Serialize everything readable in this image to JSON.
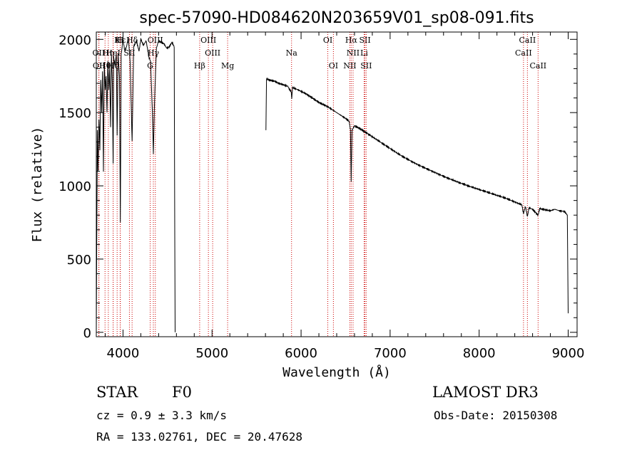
{
  "chart_data": {
    "type": "line",
    "title": "spec-57090-HD084620N203659V01_sp08-091.fits",
    "xlabel": "Wavelength (Å)",
    "ylabel": "Flux (relative)",
    "xlim": [
      3700,
      9100
    ],
    "ylim": [
      -30,
      2050
    ],
    "xticks": [
      4000,
      5000,
      6000,
      7000,
      8000,
      9000
    ],
    "yticks": [
      0,
      500,
      1000,
      1500,
      2000
    ],
    "grid": false,
    "series": [
      {
        "name": "flux",
        "segments": [
          [
            [
              3700,
              5
            ],
            [
              3705,
              620
            ],
            [
              3712,
              1380
            ],
            [
              3720,
              1100
            ],
            [
              3730,
              1450
            ],
            [
              3740,
              1250
            ],
            [
              3750,
              1720
            ],
            [
              3760,
              1500
            ],
            [
              3770,
              1780
            ],
            [
              3780,
              1100
            ],
            [
              3790,
              1850
            ],
            [
              3800,
              1650
            ],
            [
              3810,
              1750
            ],
            [
              3820,
              1500
            ],
            [
              3830,
              1860
            ],
            [
              3840,
              1650
            ],
            [
              3850,
              1800
            ],
            [
              3860,
              1400
            ],
            [
              3870,
              1900
            ],
            [
              3880,
              1700
            ],
            [
              3889,
              1150
            ],
            [
              3895,
              1880
            ],
            [
              3910,
              1820
            ],
            [
              3925,
              1900
            ],
            [
              3934,
              1350
            ],
            [
              3945,
              1900
            ],
            [
              3960,
              1750
            ],
            [
              3970,
              750
            ],
            [
              3980,
              1900
            ],
            [
              3990,
              1950
            ],
            [
              4000,
              2000
            ],
            [
              4020,
              1920
            ],
            [
              4040,
              1950
            ],
            [
              4060,
              2010
            ],
            [
              4080,
              1850
            ],
            [
              4102,
              1300
            ],
            [
              4120,
              1950
            ],
            [
              4150,
              1990
            ],
            [
              4180,
              1920
            ],
            [
              4200,
              2000
            ],
            [
              4230,
              1960
            ],
            [
              4260,
              1990
            ],
            [
              4290,
              1880
            ],
            [
              4310,
              1850
            ],
            [
              4330,
              1500
            ],
            [
              4341,
              1220
            ],
            [
              4355,
              1600
            ],
            [
              4375,
              1940
            ],
            [
              4400,
              1990
            ],
            [
              4430,
              1980
            ],
            [
              4460,
              1970
            ],
            [
              4490,
              1940
            ],
            [
              4520,
              1950
            ],
            [
              4550,
              1980
            ],
            [
              4575,
              1950
            ],
            [
              4585,
              0
            ]
          ],
          [
            [
              5605,
              1380
            ],
            [
              5612,
              1730
            ],
            [
              5650,
              1720
            ],
            [
              5700,
              1715
            ],
            [
              5750,
              1700
            ],
            [
              5800,
              1690
            ],
            [
              5850,
              1680
            ],
            [
              5890,
              1640
            ],
            [
              5895,
              1600
            ],
            [
              5905,
              1670
            ],
            [
              5950,
              1660
            ],
            [
              6000,
              1645
            ],
            [
              6050,
              1630
            ],
            [
              6100,
              1610
            ],
            [
              6150,
              1590
            ],
            [
              6200,
              1570
            ],
            [
              6250,
              1555
            ],
            [
              6300,
              1540
            ],
            [
              6350,
              1520
            ],
            [
              6400,
              1500
            ],
            [
              6450,
              1480
            ],
            [
              6500,
              1460
            ],
            [
              6540,
              1440
            ],
            [
              6555,
              1380
            ],
            [
              6563,
              1030
            ],
            [
              6572,
              1380
            ],
            [
              6600,
              1410
            ],
            [
              6650,
              1395
            ],
            [
              6700,
              1375
            ],
            [
              6750,
              1355
            ],
            [
              6800,
              1335
            ],
            [
              6900,
              1295
            ],
            [
              7000,
              1255
            ],
            [
              7100,
              1215
            ],
            [
              7200,
              1180
            ],
            [
              7300,
              1148
            ],
            [
              7400,
              1120
            ],
            [
              7500,
              1092
            ],
            [
              7600,
              1065
            ],
            [
              7700,
              1040
            ],
            [
              7800,
              1017
            ],
            [
              7900,
              995
            ],
            [
              8000,
              975
            ],
            [
              8100,
              955
            ],
            [
              8200,
              935
            ],
            [
              8300,
              915
            ],
            [
              8400,
              890
            ],
            [
              8480,
              870
            ],
            [
              8498,
              810
            ],
            [
              8520,
              860
            ],
            [
              8542,
              790
            ],
            [
              8560,
              850
            ],
            [
              8600,
              840
            ],
            [
              8662,
              800
            ],
            [
              8680,
              845
            ],
            [
              8750,
              835
            ],
            [
              8800,
              830
            ],
            [
              8850,
              840
            ],
            [
              8900,
              830
            ],
            [
              8960,
              825
            ],
            [
              8990,
              800
            ],
            [
              9000,
              130
            ]
          ]
        ]
      }
    ],
    "lines": [
      {
        "name": "Hε",
        "w": 3970,
        "row": 0
      },
      {
        "name": "K",
        "w": 3934,
        "row": 0
      },
      {
        "name": "H",
        "w": 3968,
        "row": 0
      },
      {
        "name": "Hδ",
        "w": 4102,
        "row": 0
      },
      {
        "name": "OIII",
        "w": 4363,
        "row": 0
      },
      {
        "name": "OIII",
        "w": 4959,
        "row": 0
      },
      {
        "name": "OI",
        "w": 6300,
        "row": 0
      },
      {
        "name": "Hα",
        "w": 6563,
        "row": 0
      },
      {
        "name": "SII",
        "w": 6717,
        "row": 0
      },
      {
        "name": "CaII",
        "w": 8542,
        "row": 0
      },
      {
        "name": "OII",
        "w": 3727,
        "row": 1
      },
      {
        "name": "Hη",
        "w": 3835,
        "row": 1
      },
      {
        "name": "HeI",
        "w": 3889,
        "row": 1
      },
      {
        "name": "SII",
        "w": 4072,
        "row": 1
      },
      {
        "name": "Hγ",
        "w": 4341,
        "row": 1
      },
      {
        "name": "OIII",
        "w": 5007,
        "row": 1
      },
      {
        "name": "Na",
        "w": 5893,
        "row": 1
      },
      {
        "name": "NII",
        "w": 6584,
        "row": 1
      },
      {
        "name": "Li",
        "w": 6708,
        "row": 1
      },
      {
        "name": "CaII",
        "w": 8498,
        "row": 1
      },
      {
        "name": "OII",
        "w": 3730,
        "row": 2
      },
      {
        "name": "Hθ",
        "w": 3798,
        "row": 2
      },
      {
        "name": "Hζ",
        "w": 3889,
        "row": 2
      },
      {
        "name": "G",
        "w": 4305,
        "row": 2
      },
      {
        "name": "Hβ",
        "w": 4861,
        "row": 2
      },
      {
        "name": "Mg",
        "w": 5175,
        "row": 2
      },
      {
        "name": "OI",
        "w": 6363,
        "row": 2
      },
      {
        "name": "NII",
        "w": 6548,
        "row": 2
      },
      {
        "name": "SII",
        "w": 6731,
        "row": 2
      },
      {
        "name": "CaII",
        "w": 8662,
        "row": 2
      }
    ]
  },
  "info": {
    "object_class": "STAR",
    "subclass": "F0",
    "survey": "LAMOST DR3",
    "cz": "cz = 0.9 ± 3.3 km/s",
    "obs_date": "Obs-Date: 20150308",
    "coords": "RA = 133.02761, DEC =  20.47628"
  },
  "colors": {
    "spectrum": "#000000",
    "line_markers": "#cc0000",
    "frame": "#000000"
  }
}
